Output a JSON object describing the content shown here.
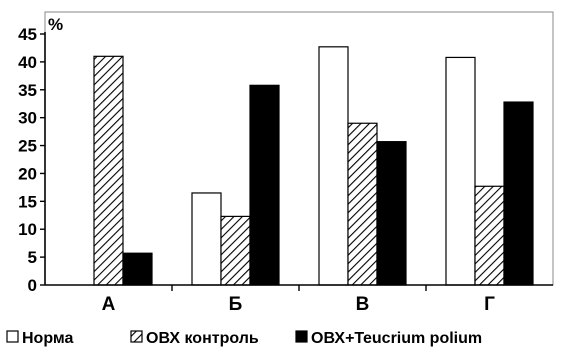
{
  "chart_data": {
    "type": "bar",
    "ylabel": "%",
    "categories": [
      "А",
      "Б",
      "В",
      "Г"
    ],
    "ylim": [
      0,
      45
    ],
    "yticks": [
      0,
      5,
      10,
      15,
      20,
      25,
      30,
      35,
      40,
      45
    ],
    "grid": false,
    "legend_position": "bottom",
    "series": [
      {
        "name": "Норма",
        "fill": "white",
        "values": [
          0,
          16.5,
          42.7,
          40.8
        ]
      },
      {
        "name": "ОВХ контроль",
        "fill": "hatched",
        "values": [
          41,
          12.3,
          29,
          17.7
        ]
      },
      {
        "name": "ОВХ+Teucrium polium",
        "fill": "black",
        "values": [
          5.7,
          35.8,
          25.7,
          32.8
        ]
      }
    ]
  }
}
